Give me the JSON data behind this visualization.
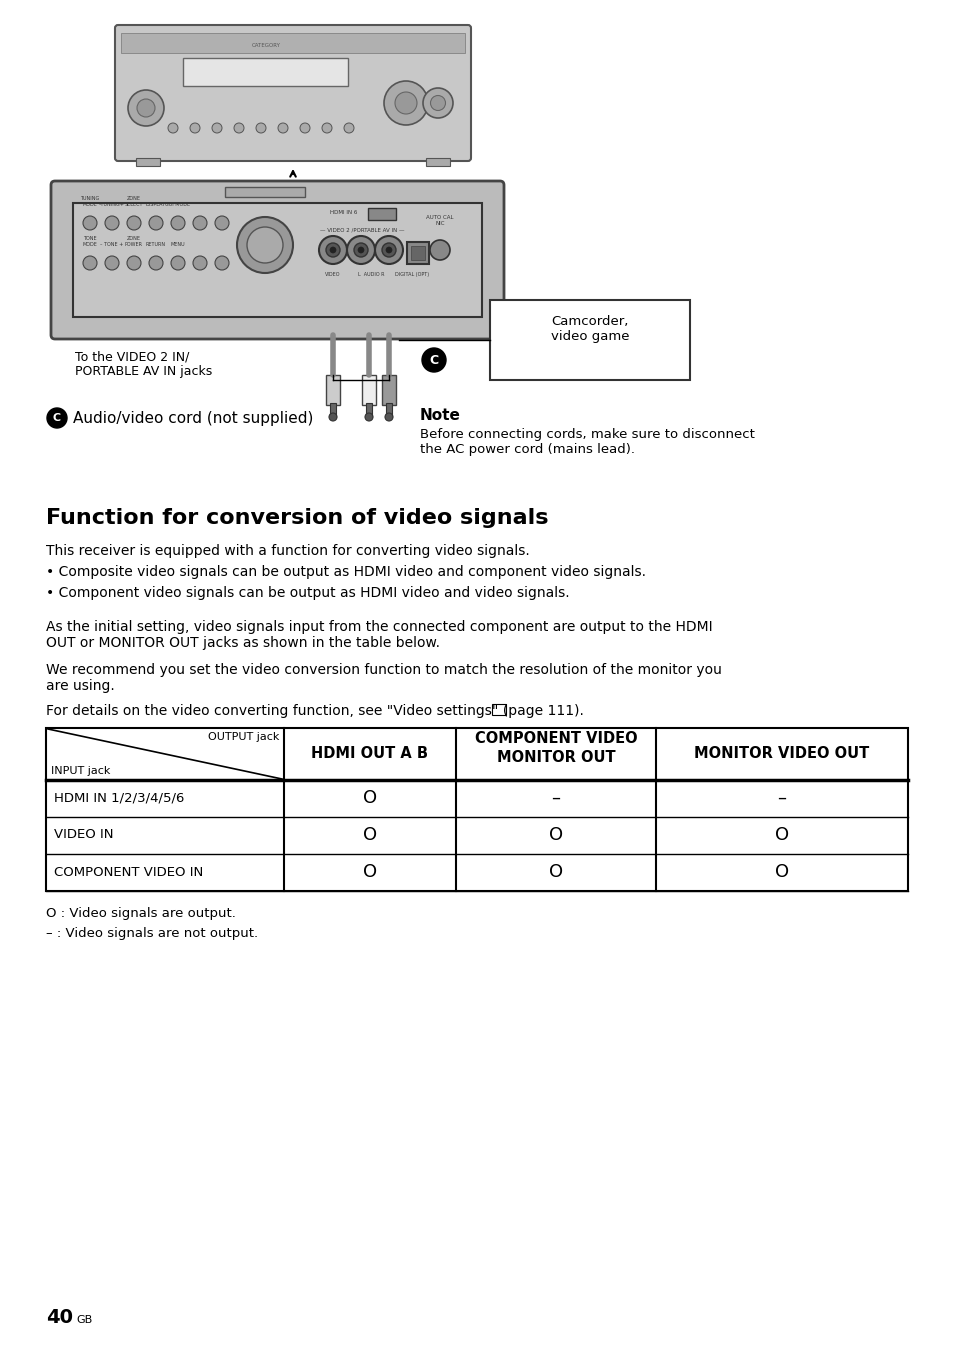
{
  "bg_color": "#ffffff",
  "page_number": "40",
  "page_suffix": "GB",
  "section_title": "Function for conversion of video signals",
  "body_text_1": "This receiver is equipped with a function for converting video signals.",
  "bullet_1": "Composite video signals can be output as HDMI video and component video signals.",
  "bullet_2": "Component video signals can be output as HDMI video and video signals.",
  "body_text_2": "As the initial setting, video signals input from the connected component are output to the HDMI\nOUT or MONITOR OUT jacks as shown in the table below.",
  "body_text_3": "We recommend you set the video conversion function to match the resolution of the monitor you\nare using.",
  "body_text_4": "For details on the video converting function, see \"⁠Video settings\" (page 111).",
  "note_title": "Note",
  "note_text": "Before connecting cords, make sure to disconnect\nthe AC power cord (mains lead).",
  "diagram_label_left": "To the VIDEO 2 IN/\nPORTABLE AV IN jacks",
  "diagram_label_right": "Camcorder,\nvideo game",
  "table_header_col1": "HDMI OUT A B",
  "table_header_col2": "COMPONENT VIDEO\nMONITOR OUT",
  "table_header_col3": "MONITOR VIDEO OUT",
  "table_header_output": "OUTPUT jack",
  "table_header_input": "INPUT jack",
  "table_rows": [
    [
      "HDMI IN 1/2/3/4/5/6",
      "O",
      "–",
      "–"
    ],
    [
      "VIDEO IN",
      "O",
      "O",
      "O"
    ],
    [
      "COMPONENT VIDEO IN",
      "O",
      "O",
      "O"
    ]
  ],
  "legend_1": "O : Video signals are output.",
  "legend_2": "– : Video signals are not output."
}
